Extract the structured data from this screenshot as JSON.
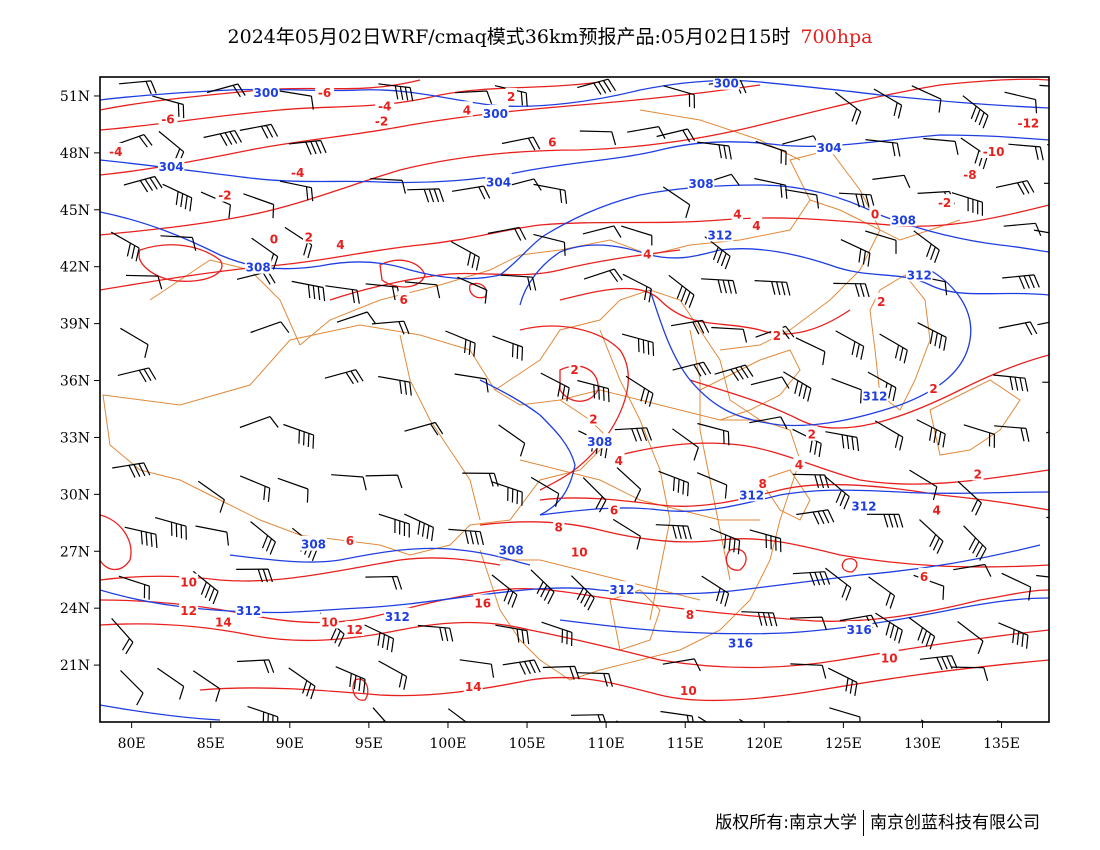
{
  "title": {
    "main": "2024年05月02日WRF/cmaq模式36km预报产品:05月02日15时",
    "level": "700hpa"
  },
  "map": {
    "type": "weather-map",
    "region": {
      "lon_range": [
        78,
        138
      ],
      "lat_range": [
        18,
        52
      ]
    },
    "lat_ticks": [
      {
        "lat": 51,
        "label": "51N"
      },
      {
        "lat": 48,
        "label": "48N"
      },
      {
        "lat": 45,
        "label": "45N"
      },
      {
        "lat": 42,
        "label": "42N"
      },
      {
        "lat": 39,
        "label": "39N"
      },
      {
        "lat": 36,
        "label": "36N"
      },
      {
        "lat": 33,
        "label": "33N"
      },
      {
        "lat": 30,
        "label": "30N"
      },
      {
        "lat": 27,
        "label": "27N"
      },
      {
        "lat": 24,
        "label": "24N"
      },
      {
        "lat": 21,
        "label": "21N"
      }
    ],
    "lon_ticks": [
      {
        "lon": 80,
        "label": "80E"
      },
      {
        "lon": 85,
        "label": "85E"
      },
      {
        "lon": 90,
        "label": "90E"
      },
      {
        "lon": 95,
        "label": "95E"
      },
      {
        "lon": 100,
        "label": "100E"
      },
      {
        "lon": 105,
        "label": "105E"
      },
      {
        "lon": 110,
        "label": "110E"
      },
      {
        "lon": 115,
        "label": "115E"
      },
      {
        "lon": 120,
        "label": "120E"
      },
      {
        "lon": 125,
        "label": "125E"
      },
      {
        "lon": 130,
        "label": "130E"
      },
      {
        "lon": 135,
        "label": "135E"
      }
    ],
    "colors": {
      "height_contour": "#1f3ee0",
      "temperature_contour": "#e8201d",
      "boundary": "#e08a3c",
      "wind_barb": "#000000"
    },
    "height_labels": [
      {
        "lon": 88.5,
        "lat": 51.2,
        "text": "300"
      },
      {
        "lon": 103.0,
        "lat": 50.1,
        "text": "300"
      },
      {
        "lon": 117.6,
        "lat": 51.7,
        "text": "300"
      },
      {
        "lon": 82.5,
        "lat": 47.3,
        "text": "304"
      },
      {
        "lon": 103.2,
        "lat": 46.5,
        "text": "304"
      },
      {
        "lon": 124.1,
        "lat": 48.3,
        "text": "304"
      },
      {
        "lon": 116.0,
        "lat": 46.4,
        "text": "308"
      },
      {
        "lon": 88.0,
        "lat": 42.0,
        "text": "308"
      },
      {
        "lon": 128.8,
        "lat": 44.5,
        "text": "308"
      },
      {
        "lon": 117.2,
        "lat": 43.7,
        "text": "312"
      },
      {
        "lon": 129.8,
        "lat": 41.6,
        "text": "312"
      },
      {
        "lon": 127.0,
        "lat": 35.2,
        "text": "312"
      },
      {
        "lon": 109.6,
        "lat": 32.8,
        "text": "308"
      },
      {
        "lon": 119.2,
        "lat": 30.0,
        "text": "312"
      },
      {
        "lon": 126.3,
        "lat": 29.4,
        "text": "312"
      },
      {
        "lon": 91.5,
        "lat": 27.4,
        "text": "308"
      },
      {
        "lon": 104.0,
        "lat": 27.1,
        "text": "308"
      },
      {
        "lon": 87.4,
        "lat": 23.9,
        "text": "312"
      },
      {
        "lon": 96.8,
        "lat": 23.6,
        "text": "312"
      },
      {
        "lon": 111.0,
        "lat": 25.0,
        "text": "312"
      },
      {
        "lon": 118.5,
        "lat": 22.2,
        "text": "316"
      },
      {
        "lon": 126.0,
        "lat": 22.9,
        "text": "316"
      }
    ],
    "temperature_labels": [
      {
        "lon": 92.2,
        "lat": 51.2,
        "text": "-6"
      },
      {
        "lon": 96.0,
        "lat": 50.5,
        "text": "-4"
      },
      {
        "lon": 82.3,
        "lat": 49.8,
        "text": "-6"
      },
      {
        "lon": 95.8,
        "lat": 49.7,
        "text": "-2"
      },
      {
        "lon": 79.0,
        "lat": 48.1,
        "text": "-4"
      },
      {
        "lon": 90.5,
        "lat": 47.0,
        "text": "-4"
      },
      {
        "lon": 85.9,
        "lat": 45.8,
        "text": "-2"
      },
      {
        "lon": 104.0,
        "lat": 51.0,
        "text": "2"
      },
      {
        "lon": 101.2,
        "lat": 50.3,
        "text": "4"
      },
      {
        "lon": 106.6,
        "lat": 48.6,
        "text": "6"
      },
      {
        "lon": 136.7,
        "lat": 49.6,
        "text": "-12"
      },
      {
        "lon": 134.5,
        "lat": 48.1,
        "text": "-10"
      },
      {
        "lon": 133.0,
        "lat": 46.9,
        "text": "-8"
      },
      {
        "lon": 131.4,
        "lat": 45.4,
        "text": "-2"
      },
      {
        "lon": 127.0,
        "lat": 44.8,
        "text": "0"
      },
      {
        "lon": 118.3,
        "lat": 44.8,
        "text": "4"
      },
      {
        "lon": 119.5,
        "lat": 44.2,
        "text": "4"
      },
      {
        "lon": 112.6,
        "lat": 42.7,
        "text": "4"
      },
      {
        "lon": 89.0,
        "lat": 43.5,
        "text": "0"
      },
      {
        "lon": 91.2,
        "lat": 43.6,
        "text": "2"
      },
      {
        "lon": 93.2,
        "lat": 43.2,
        "text": "4"
      },
      {
        "lon": 97.2,
        "lat": 40.3,
        "text": "6"
      },
      {
        "lon": 127.4,
        "lat": 40.2,
        "text": "2"
      },
      {
        "lon": 120.8,
        "lat": 38.4,
        "text": "2"
      },
      {
        "lon": 108.0,
        "lat": 36.6,
        "text": "2"
      },
      {
        "lon": 109.2,
        "lat": 34.0,
        "text": "2"
      },
      {
        "lon": 130.7,
        "lat": 35.6,
        "text": "2"
      },
      {
        "lon": 123.0,
        "lat": 33.2,
        "text": "2"
      },
      {
        "lon": 110.8,
        "lat": 31.8,
        "text": "4"
      },
      {
        "lon": 122.2,
        "lat": 31.6,
        "text": "4"
      },
      {
        "lon": 133.5,
        "lat": 31.1,
        "text": "2"
      },
      {
        "lon": 119.9,
        "lat": 30.6,
        "text": "8"
      },
      {
        "lon": 130.9,
        "lat": 29.2,
        "text": "4"
      },
      {
        "lon": 110.5,
        "lat": 29.2,
        "text": "6"
      },
      {
        "lon": 93.8,
        "lat": 27.6,
        "text": "6"
      },
      {
        "lon": 107.0,
        "lat": 28.3,
        "text": "8"
      },
      {
        "lon": 108.3,
        "lat": 27.0,
        "text": "10"
      },
      {
        "lon": 130.1,
        "lat": 25.7,
        "text": "6"
      },
      {
        "lon": 83.6,
        "lat": 25.4,
        "text": "10"
      },
      {
        "lon": 83.6,
        "lat": 23.9,
        "text": "12"
      },
      {
        "lon": 85.8,
        "lat": 23.3,
        "text": "14"
      },
      {
        "lon": 92.5,
        "lat": 23.3,
        "text": "10"
      },
      {
        "lon": 94.1,
        "lat": 22.9,
        "text": "12"
      },
      {
        "lon": 102.2,
        "lat": 24.3,
        "text": "16"
      },
      {
        "lon": 115.3,
        "lat": 23.7,
        "text": "8"
      },
      {
        "lon": 101.6,
        "lat": 19.9,
        "text": "14"
      },
      {
        "lon": 127.9,
        "lat": 21.4,
        "text": "10"
      },
      {
        "lon": 115.2,
        "lat": 19.7,
        "text": "10"
      }
    ]
  },
  "footer": {
    "owner": "版权所有:南京大学",
    "company": "南京创蓝科技有限公司"
  }
}
